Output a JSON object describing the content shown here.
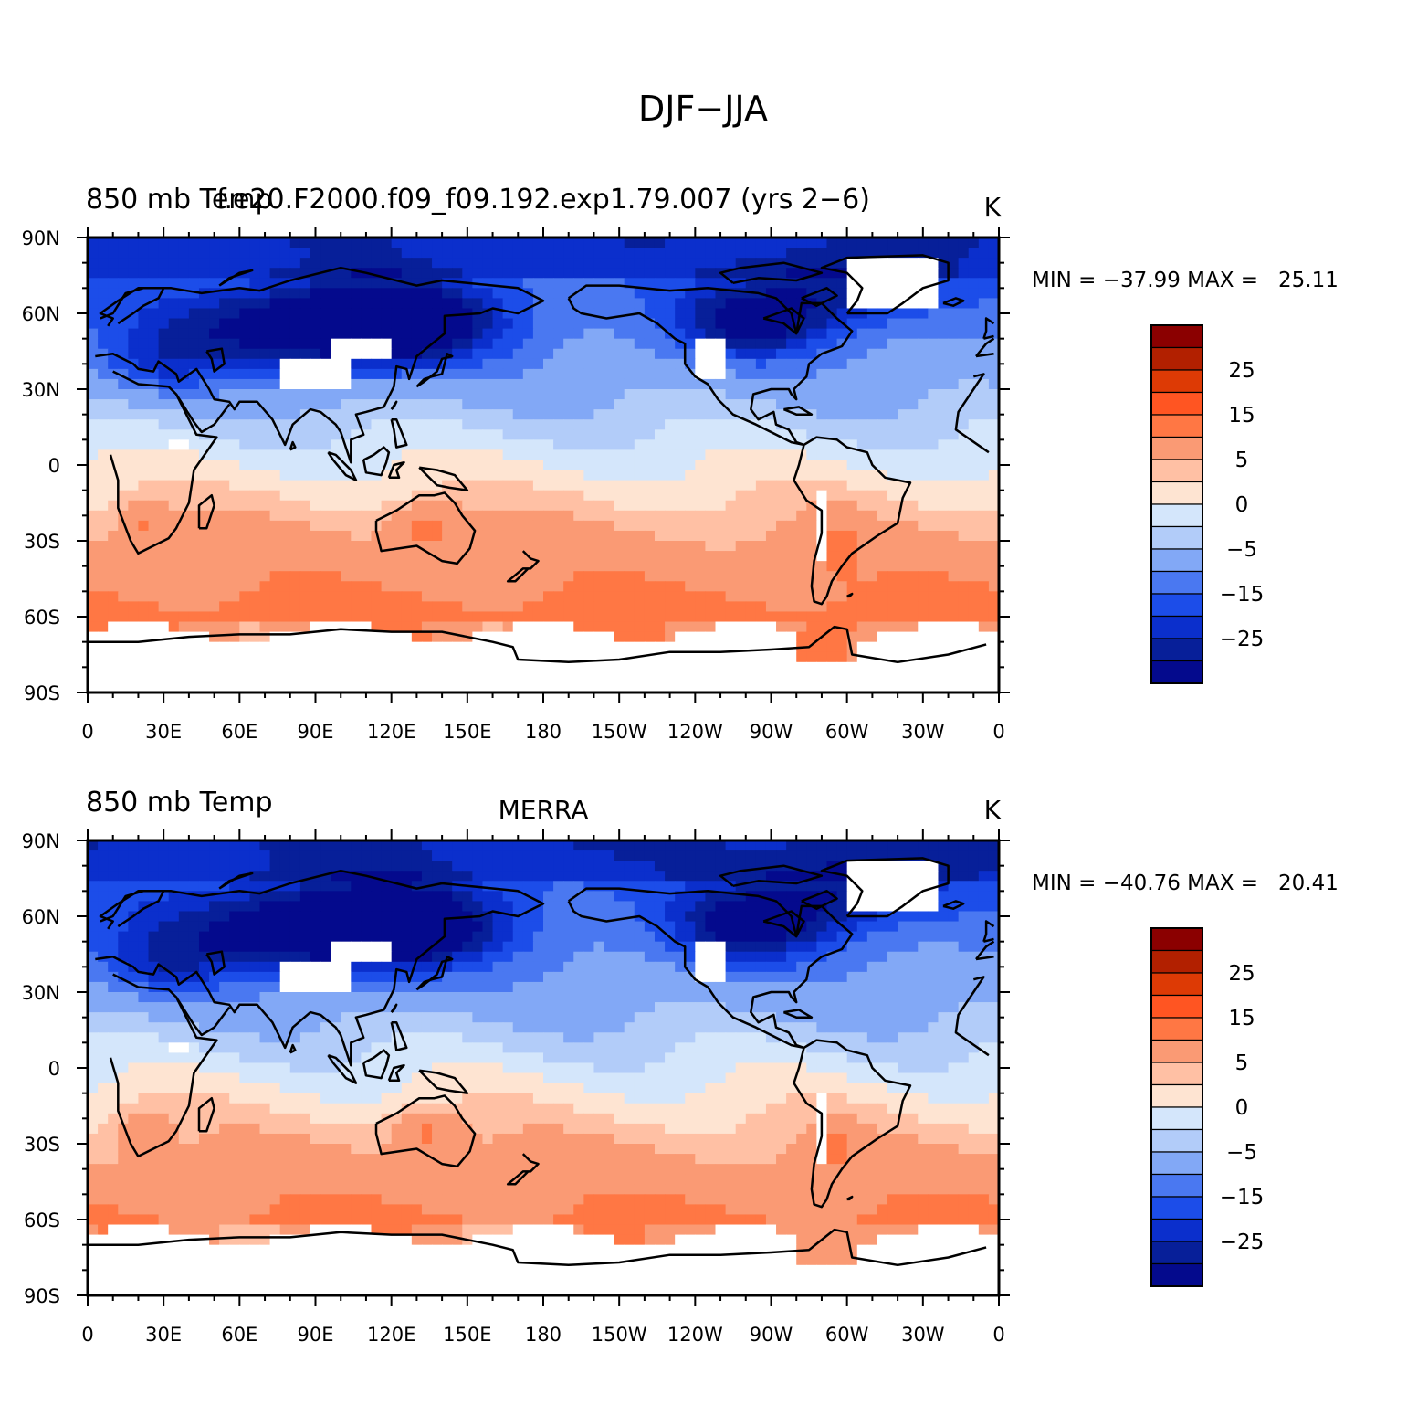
{
  "figure": {
    "title": "DJF−JJA"
  },
  "chart_data": [
    {
      "type": "heatmap",
      "left_title": "850 mb Temp",
      "center_title": "f.e20.F2000.f09_f09.192.exp1.79.007 (yrs 2−6)",
      "units": "K",
      "stats": "MIN = −37.99 MAX =   25.11",
      "min": -37.99,
      "max": 25.11,
      "x_ticks": [
        "0",
        "30E",
        "60E",
        "90E",
        "120E",
        "150E",
        "180",
        "150W",
        "120W",
        "90W",
        "60W",
        "30W",
        "0"
      ],
      "y_ticks": [
        "90N",
        "60N",
        "30N",
        "0",
        "30S",
        "60S",
        "90S"
      ],
      "xlim": [
        0,
        360
      ],
      "ylim": [
        -90,
        90
      ],
      "colorbar": {
        "labels": [
          "25",
          "15",
          "5",
          "0",
          "−5",
          "−15",
          "−25"
        ],
        "colors": [
          "#8b0000",
          "#b22000",
          "#dd3a05",
          "#ff5522",
          "#ff7744",
          "#fa9a74",
          "#ffc0a4",
          "#fee4d2",
          "#d4e6fb",
          "#b2ccf9",
          "#82a8f6",
          "#4a78f1",
          "#1c4de9",
          "#0b2fcc",
          "#071f99",
          "#040a8d"
        ]
      }
    },
    {
      "type": "heatmap",
      "left_title": "850 mb Temp",
      "center_title": "MERRA",
      "units": "K",
      "stats": "MIN = −40.76 MAX =   20.41",
      "min": -40.76,
      "max": 20.41,
      "x_ticks": [
        "0",
        "30E",
        "60E",
        "90E",
        "120E",
        "150E",
        "180",
        "150W",
        "120W",
        "90W",
        "60W",
        "30W",
        "0"
      ],
      "y_ticks": [
        "90N",
        "60N",
        "30N",
        "0",
        "30S",
        "60S",
        "90S"
      ],
      "xlim": [
        0,
        360
      ],
      "ylim": [
        -90,
        90
      ],
      "colorbar": {
        "labels": [
          "25",
          "15",
          "5",
          "0",
          "−5",
          "−15",
          "−25"
        ],
        "colors": [
          "#8b0000",
          "#b22000",
          "#dd3a05",
          "#ff5522",
          "#ff7744",
          "#fa9a74",
          "#ffc0a4",
          "#fee4d2",
          "#d4e6fb",
          "#b2ccf9",
          "#82a8f6",
          "#4a78f1",
          "#1c4de9",
          "#0b2fcc",
          "#071f99",
          "#040a8d"
        ]
      }
    }
  ]
}
